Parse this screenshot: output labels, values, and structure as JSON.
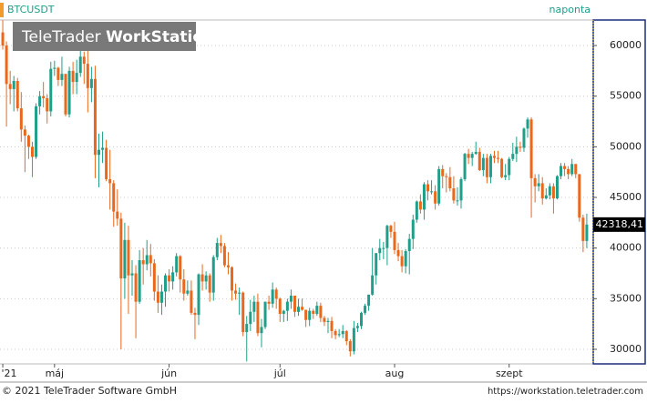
{
  "chart_data": {
    "type": "candlestick",
    "symbol": "BTCUSDT",
    "period": "naponta",
    "watermark_brand": "TeleTrader",
    "watermark_product": "WorkStation",
    "copyright": "© 2021 TeleTrader Software GmbH",
    "url": "https://workstation.teletrader.com",
    "colors": {
      "up": "#1f9e8a",
      "down": "#e8691e"
    },
    "grid": true,
    "ylim": [
      28560,
      62520
    ],
    "yticks": [
      30000,
      35000,
      40000,
      45000,
      50000,
      55000,
      60000
    ],
    "xlim": [
      -0.75,
      159.5
    ],
    "xticks": [
      {
        "value": 0,
        "label": "'21"
      },
      {
        "value": 14,
        "label": "máj"
      },
      {
        "value": 45,
        "label": "jún"
      },
      {
        "value": 75,
        "label": "júl"
      },
      {
        "value": 106,
        "label": "aug"
      },
      {
        "value": 137,
        "label": "szept"
      }
    ],
    "last_price": {
      "value": 42318.41,
      "label": "42318,41"
    },
    "open": [
      61300,
      60000,
      56200,
      55700,
      56500,
      53800,
      51700,
      51100,
      50000,
      49000,
      54000,
      55000,
      54800,
      53500,
      57700,
      57800,
      56600,
      57200,
      53200,
      57500,
      56400,
      57300,
      58900,
      58200,
      55800,
      56700,
      49200,
      49700,
      49900,
      46800,
      46400,
      43600,
      42900,
      37000,
      40800,
      37300,
      37500,
      34700,
      38800,
      38400,
      39300,
      38500,
      35700,
      34600,
      35700,
      37300,
      36700,
      37600,
      39200,
      36900,
      35500,
      35800,
      33600,
      33400,
      37400,
      36700,
      37300,
      35600,
      39100,
      40500,
      40200,
      38300,
      38100,
      35800,
      35500,
      35600,
      31700,
      32500,
      33700,
      34700,
      31600,
      32200,
      34700,
      34500,
      35900,
      35000,
      33500,
      33800,
      34700,
      35300,
      33700,
      34200,
      33900,
      32900,
      33800,
      33500,
      34300,
      33100,
      32700,
      32800,
      31800,
      31400,
      31500,
      31800,
      30800,
      29800,
      32100,
      32300,
      33600,
      34300,
      35400,
      37300,
      39500,
      40000,
      40000,
      42200,
      41600,
      39800,
      39200,
      38200,
      39700,
      40900,
      42800,
      44600,
      43800,
      46300,
      45600,
      45600,
      44400,
      47800,
      47100,
      47000,
      45900,
      44700,
      44700,
      46800,
      49300,
      48900,
      49300,
      49500,
      47700,
      48900,
      47000,
      49100,
      48900,
      48800,
      47000,
      47200,
      48800,
      49300,
      50000,
      49900,
      51800,
      52700,
      46900,
      46100,
      46400,
      44900,
      45200,
      46100,
      44900,
      47100,
      48100,
      47800,
      47300,
      48300,
      47300,
      43000,
      40700
    ],
    "high": [
      62500,
      60400,
      57500,
      57000,
      56800,
      55400,
      52100,
      51200,
      50500,
      54300,
      55500,
      56400,
      55200,
      58400,
      58500,
      57900,
      58900,
      57200,
      57900,
      58400,
      58600,
      59500,
      59400,
      59500,
      57900,
      58000,
      51300,
      51500,
      50700,
      49700,
      46700,
      45800,
      43500,
      42500,
      42200,
      38800,
      38300,
      39800,
      40000,
      40800,
      40400,
      38900,
      37300,
      36400,
      37500,
      37900,
      38200,
      39500,
      39300,
      37900,
      36800,
      36800,
      34100,
      37500,
      38400,
      37700,
      37500,
      39300,
      41000,
      41300,
      40500,
      39600,
      38200,
      36500,
      36100,
      35700,
      33300,
      34900,
      35300,
      35500,
      33000,
      34700,
      35300,
      36600,
      36100,
      35100,
      33900,
      35000,
      35900,
      35300,
      35000,
      35000,
      33900,
      34100,
      34000,
      34700,
      34600,
      33300,
      33100,
      33200,
      32000,
      32000,
      32400,
      31900,
      31000,
      32800,
      32600,
      33700,
      34500,
      35400,
      40000,
      39500,
      40900,
      40600,
      42300,
      42300,
      42600,
      40500,
      39800,
      39900,
      41400,
      43300,
      44700,
      45300,
      46500,
      46700,
      46700,
      46200,
      48100,
      48200,
      47400,
      48000,
      47100,
      46000,
      47000,
      49400,
      49800,
      49500,
      50500,
      49900,
      49300,
      49300,
      49300,
      49600,
      49600,
      48900,
      48300,
      49000,
      50400,
      51000,
      50500,
      51900,
      52900,
      52900,
      47300,
      47300,
      47000,
      45900,
      46400,
      46400,
      47200,
      48400,
      48400,
      48100,
      48800,
      48300,
      47300,
      43300,
      43400
    ],
    "low": [
      59600,
      52000,
      54200,
      53500,
      53500,
      50500,
      47500,
      48800,
      47000,
      48800,
      53200,
      53900,
      52300,
      53000,
      57000,
      56000,
      56000,
      53000,
      52900,
      55200,
      55200,
      56900,
      56200,
      53400,
      54400,
      46900,
      46000,
      48400,
      46600,
      43800,
      42100,
      42200,
      30000,
      35000,
      33500,
      35300,
      31100,
      34500,
      36400,
      37800,
      37200,
      34800,
      33600,
      33400,
      34200,
      35700,
      35900,
      37200,
      35600,
      34800,
      35300,
      33400,
      31000,
      32400,
      35800,
      35900,
      34700,
      34800,
      38800,
      39500,
      38100,
      37400,
      34800,
      34900,
      33400,
      31300,
      28800,
      31800,
      32700,
      31300,
      30200,
      32000,
      33900,
      34100,
      34000,
      32700,
      32700,
      32800,
      34000,
      33200,
      33300,
      33800,
      32200,
      32300,
      33000,
      33300,
      32700,
      32300,
      31600,
      31100,
      31000,
      31200,
      31100,
      30400,
      29300,
      29500,
      31700,
      32000,
      33400,
      33800,
      35300,
      36400,
      38800,
      38900,
      38300,
      41000,
      39400,
      38700,
      37600,
      37500,
      37400,
      39900,
      42500,
      43400,
      42800,
      44700,
      45300,
      43800,
      44200,
      45900,
      45500,
      45600,
      44400,
      44200,
      43900,
      46600,
      48300,
      48100,
      49200,
      47600,
      47100,
      46400,
      46400,
      48400,
      48400,
      46900,
      46700,
      46700,
      48600,
      48500,
      49500,
      49500,
      50900,
      43000,
      44500,
      45600,
      44300,
      44800,
      44800,
      43400,
      44800,
      46800,
      47100,
      46800,
      47100,
      46900,
      42600,
      39600,
      40000
    ],
    "close": [
      60000,
      56200,
      55700,
      56500,
      53800,
      51700,
      51100,
      50000,
      49000,
      54000,
      55000,
      54800,
      53500,
      57700,
      57800,
      56600,
      57200,
      53200,
      57500,
      56400,
      57300,
      58900,
      58200,
      55800,
      56700,
      49200,
      49700,
      49900,
      46800,
      46400,
      43600,
      42900,
      37000,
      40800,
      37300,
      37500,
      34700,
      38800,
      38400,
      39300,
      38500,
      35700,
      34600,
      35700,
      37300,
      36700,
      37600,
      39200,
      36900,
      35500,
      35800,
      33600,
      33400,
      37400,
      36700,
      37300,
      35600,
      39100,
      40500,
      40200,
      38300,
      38100,
      35800,
      35500,
      35600,
      31700,
      32500,
      33700,
      34700,
      31600,
      32200,
      34700,
      34500,
      35900,
      35000,
      33500,
      33800,
      34700,
      35300,
      33700,
      34200,
      33900,
      32900,
      33800,
      33500,
      34300,
      33100,
      32700,
      32800,
      31800,
      31400,
      31500,
      31800,
      30800,
      29800,
      32100,
      32300,
      33600,
      34300,
      35400,
      37300,
      39500,
      40000,
      40000,
      42200,
      41600,
      39800,
      39200,
      38200,
      39700,
      40900,
      42800,
      44600,
      43800,
      46300,
      45600,
      45600,
      44400,
      47800,
      47100,
      47000,
      45900,
      44700,
      44700,
      46800,
      49300,
      48900,
      49300,
      49500,
      47700,
      48900,
      47000,
      49100,
      48900,
      48800,
      47000,
      47200,
      48800,
      49300,
      50000,
      49900,
      51800,
      52700,
      46900,
      46100,
      46400,
      44900,
      45200,
      46100,
      44900,
      47100,
      48100,
      47800,
      47300,
      48300,
      47300,
      43000,
      40700,
      42318.41
    ]
  }
}
